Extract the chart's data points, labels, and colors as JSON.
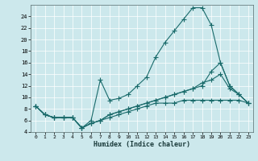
{
  "xlabel": "Humidex (Indice chaleur)",
  "bg_color": "#cce8ec",
  "grid_color": "#b0d0d8",
  "line_color": "#1a6b6b",
  "xlim": [
    -0.5,
    23.5
  ],
  "ylim": [
    4,
    26
  ],
  "yticks": [
    4,
    6,
    8,
    10,
    12,
    14,
    16,
    18,
    20,
    22,
    24
  ],
  "xticks": [
    0,
    1,
    2,
    3,
    4,
    5,
    6,
    7,
    8,
    9,
    10,
    11,
    12,
    13,
    14,
    15,
    16,
    17,
    18,
    19,
    20,
    21,
    22,
    23
  ],
  "line1_x": [
    0,
    1,
    2,
    3,
    4,
    5,
    6,
    7,
    8,
    9,
    10,
    11,
    12,
    13,
    14,
    15,
    16,
    17,
    18,
    19,
    20,
    21,
    22,
    23
  ],
  "line1_y": [
    8.5,
    7.0,
    6.5,
    6.5,
    6.5,
    4.7,
    6.0,
    13.0,
    9.5,
    9.8,
    10.5,
    12.0,
    13.5,
    17.0,
    19.5,
    21.5,
    23.5,
    25.5,
    25.5,
    22.5,
    16.0,
    12.0,
    10.5,
    9.0
  ],
  "line2_x": [
    0,
    1,
    2,
    3,
    4,
    5,
    6,
    7,
    8,
    9,
    10,
    11,
    12,
    13,
    14,
    15,
    16,
    17,
    18,
    19,
    20,
    21,
    22,
    23
  ],
  "line2_y": [
    8.5,
    7.0,
    6.5,
    6.5,
    6.5,
    4.7,
    5.5,
    6.0,
    7.0,
    7.5,
    8.0,
    8.5,
    9.0,
    9.5,
    10.0,
    10.5,
    11.0,
    11.5,
    12.0,
    14.5,
    16.0,
    12.0,
    10.5,
    9.0
  ],
  "line3_x": [
    0,
    1,
    2,
    3,
    4,
    5,
    6,
    7,
    8,
    9,
    10,
    11,
    12,
    13,
    14,
    15,
    16,
    17,
    18,
    19,
    20,
    21,
    22,
    23
  ],
  "line3_y": [
    8.5,
    7.0,
    6.5,
    6.5,
    6.5,
    4.7,
    5.5,
    6.0,
    7.0,
    7.5,
    8.0,
    8.5,
    9.0,
    9.5,
    10.0,
    10.5,
    11.0,
    11.5,
    12.5,
    13.0,
    14.0,
    11.5,
    10.5,
    9.0
  ],
  "line4_x": [
    0,
    1,
    2,
    3,
    4,
    5,
    6,
    7,
    8,
    9,
    10,
    11,
    12,
    13,
    14,
    15,
    16,
    17,
    18,
    19,
    20,
    21,
    22,
    23
  ],
  "line4_y": [
    8.5,
    7.0,
    6.5,
    6.5,
    6.5,
    4.7,
    5.5,
    6.0,
    6.5,
    7.0,
    7.5,
    8.0,
    8.5,
    9.0,
    9.0,
    9.0,
    9.5,
    9.5,
    9.5,
    9.5,
    9.5,
    9.5,
    9.5,
    9.0
  ]
}
